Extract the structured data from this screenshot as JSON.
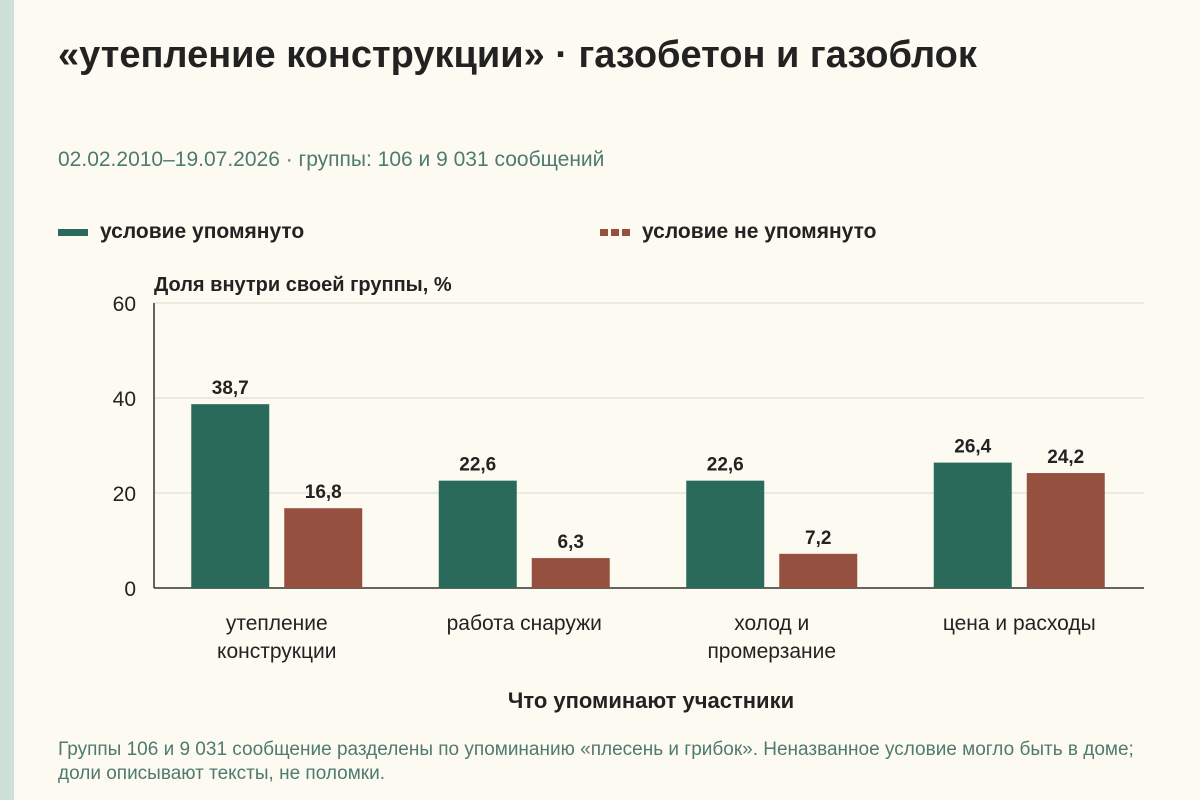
{
  "title": "«утепление конструкции» · газобетон и газоблок",
  "subtitle": "02.02.2010–19.07.2026 · группы: 106 и 9 031 сообщений",
  "legend": {
    "mentioned": "условие упомянуто",
    "not_mentioned": "условие не упомянуто"
  },
  "colors": {
    "mentioned": "#2a6a5b",
    "not_mentioned": "#96503f"
  },
  "footnote": "Группы 106 и 9 031 сообщение разделены по упоминанию «плесень и грибок». Неназванное условие могло быть в доме; доли описывают тексты, не поломки.",
  "chart_data": {
    "type": "bar",
    "ylabel": "Доля внутри своей группы, %",
    "xlabel": "Что упоминают участники",
    "ylim": [
      0,
      60
    ],
    "yticks": [
      0,
      20,
      40,
      60
    ],
    "categories": [
      [
        "утепление",
        "конструкции"
      ],
      [
        "работа снаружи"
      ],
      [
        "холод и",
        "промерзание"
      ],
      [
        "цена и расходы"
      ]
    ],
    "series": [
      {
        "name": "условие упомянуто",
        "values": [
          38.7,
          22.6,
          22.6,
          26.4
        ],
        "labels": [
          "38,7",
          "22,6",
          "22,6",
          "26,4"
        ]
      },
      {
        "name": "условие не упомянуто",
        "values": [
          16.8,
          6.3,
          7.2,
          24.2
        ],
        "labels": [
          "16,8",
          "6,3",
          "7,2",
          "24,2"
        ]
      }
    ],
    "grid": true,
    "legend_position": "top"
  }
}
